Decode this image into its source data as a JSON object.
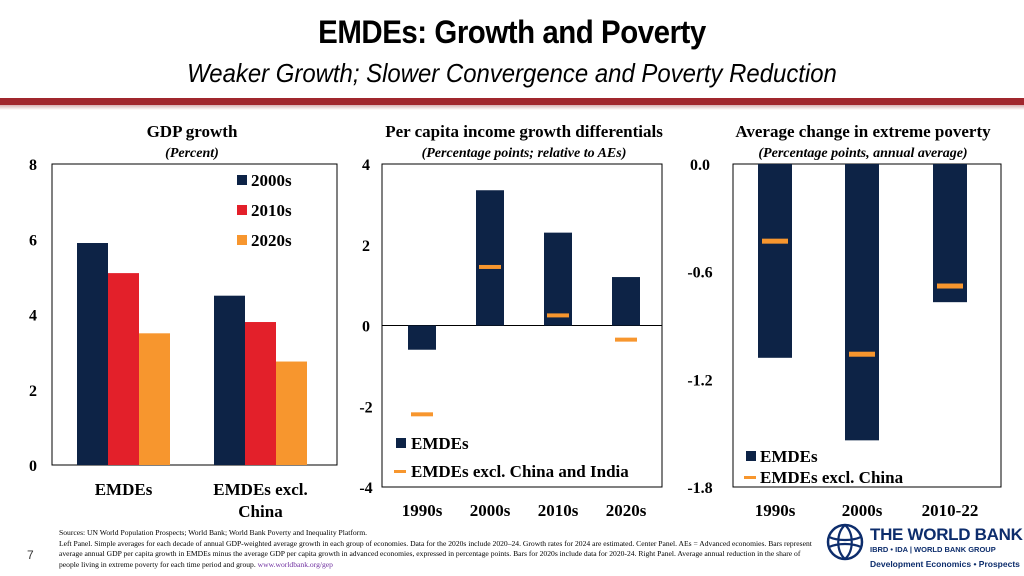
{
  "header": {
    "title": "EMDEs: Growth and Poverty",
    "subtitle": "Weaker Growth; Slower Convergence and Poverty Reduction"
  },
  "colors": {
    "navy": "#0d2346",
    "red": "#e3202a",
    "orange": "#f7962e",
    "header_rule": "#a0262d"
  },
  "chart_data": [
    {
      "type": "bar",
      "title": "GDP growth",
      "subtitle": "(Percent)",
      "categories": [
        "EMDEs",
        "EMDEs excl. China"
      ],
      "category_lines": [
        [
          "EMDEs"
        ],
        [
          "EMDEs excl.",
          "China"
        ]
      ],
      "series": [
        {
          "name": "2000s",
          "values": [
            5.9,
            4.5
          ]
        },
        {
          "name": "2010s",
          "values": [
            5.1,
            3.8
          ]
        },
        {
          "name": "2020s",
          "values": [
            3.5,
            2.75
          ]
        }
      ],
      "ylim": [
        0,
        8
      ],
      "yticks": [
        "0",
        "2",
        "4",
        "6",
        "8"
      ],
      "legend": "top-right"
    },
    {
      "type": "bar",
      "title": "Per capita income growth differentials",
      "subtitle": "(Percentage points; relative to AEs)",
      "categories": [
        "1990s",
        "2000s",
        "2010s",
        "2020s"
      ],
      "series": [
        {
          "name": "EMDEs",
          "values": [
            -0.6,
            3.35,
            2.3,
            1.2
          ]
        },
        {
          "name": "EMDEs excl. China and India",
          "marker": "dash",
          "values": [
            -2.2,
            1.45,
            0.25,
            -0.35
          ]
        }
      ],
      "ylim": [
        -4,
        4
      ],
      "yticks": [
        "-4",
        "-2",
        "0",
        "2",
        "4"
      ],
      "legend": "bottom-right"
    },
    {
      "type": "bar",
      "title": "Average change in extreme poverty",
      "subtitle": "(Percentage points, annual average)",
      "categories": [
        "1990s",
        "2000s",
        "2010-22"
      ],
      "series": [
        {
          "name": "EMDEs",
          "values": [
            -1.08,
            -1.54,
            -0.77
          ]
        },
        {
          "name": "EMDEs excl. China",
          "marker": "dash",
          "values": [
            -0.43,
            -1.06,
            -0.68
          ]
        }
      ],
      "ylim": [
        -1.8,
        0
      ],
      "yticks": [
        "0.0",
        "-0.6",
        "-1.2",
        "-1.8"
      ],
      "legend": "bottom-right"
    }
  ],
  "footer": {
    "page_number": "7",
    "sources": "Sources: UN World Population Prospects; World Bank; World Bank Poverty and Inequality Platform.",
    "note_left": "Left Panel. Simple averages for each decade of annual GDP-weighted average growth in each group of economies. Data for the 2020s include 2020–24. Growth rates for 2024 are estimated. Center Panel. AEs = Advanced economies. Bars represent average annual GDP per capita growth in EMDEs minus the average GDP per capita growth in advanced economies, expressed in percentage points. Bars for 2020s include data for 2020-24. Right Panel. Average annual reduction in the share of people living in extreme poverty for each time period and group.",
    "link_text": "www.worldbank.org/gep"
  },
  "logo": {
    "name": "THE WORLD BANK",
    "affiliation": "IBRD • IDA | WORLD BANK GROUP",
    "department": "Development Economics • Prospects"
  }
}
